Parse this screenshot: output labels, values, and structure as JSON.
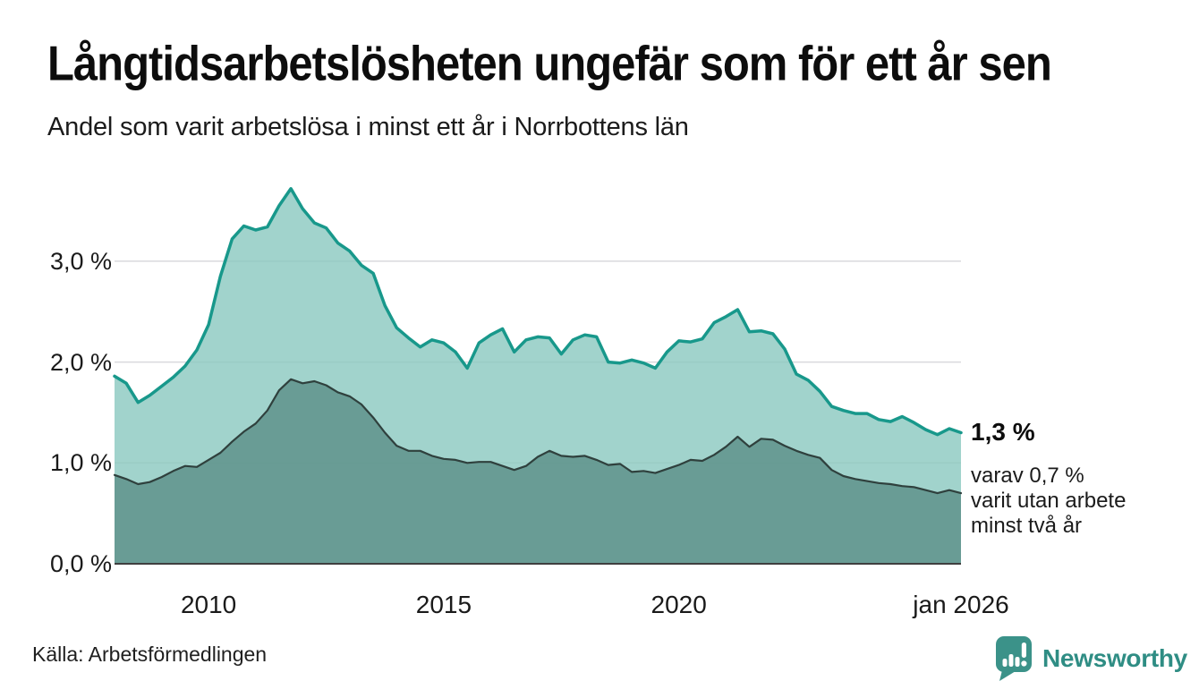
{
  "header": {
    "title": "Långtidsarbetslösheten ungefär som för ett år sen",
    "subtitle": "Andel som varit arbetslösa i minst ett år i Norrbottens län"
  },
  "chart_data": {
    "type": "area",
    "title": "Långtidsarbetslösheten ungefär som för ett år sen",
    "subtitle": "Andel som varit arbetslösa i minst ett år i Norrbottens län",
    "x": {
      "start": 2008,
      "step": 0.25,
      "end": 2026,
      "unit": "year"
    },
    "ylim": [
      0,
      3.9
    ],
    "grid": true,
    "grid_color": "#d9d9dd",
    "axis_color": "#3f3f3f",
    "yticks": {
      "values": [
        0,
        1,
        2,
        3
      ],
      "labels": [
        "0,0 %",
        "1,0 %",
        "2,0 %",
        "3,0 %"
      ]
    },
    "xticks": {
      "values": [
        2010,
        2015,
        2020,
        2026
      ],
      "labels": [
        "2010",
        "2015",
        "2020",
        "jan 2026"
      ]
    },
    "series": [
      {
        "name": "Andel arbetslösa minst ett år",
        "line_color": "#18988b",
        "fill_color": "rgba(137,200,191,0.8)",
        "line_width": 3.5,
        "values": [
          1.86,
          1.79,
          1.6,
          1.67,
          1.76,
          1.85,
          1.96,
          2.12,
          2.37,
          2.85,
          3.22,
          3.35,
          3.31,
          3.34,
          3.55,
          3.72,
          3.52,
          3.38,
          3.33,
          3.18,
          3.1,
          2.96,
          2.88,
          2.56,
          2.34,
          2.24,
          2.15,
          2.22,
          2.19,
          2.1,
          1.94,
          2.19,
          2.27,
          2.33,
          2.1,
          2.22,
          2.25,
          2.24,
          2.08,
          2.22,
          2.27,
          2.25,
          2.0,
          1.99,
          2.02,
          1.99,
          1.94,
          2.1,
          2.21,
          2.2,
          2.23,
          2.39,
          2.45,
          2.52,
          2.3,
          2.31,
          2.28,
          2.13,
          1.88,
          1.82,
          1.71,
          1.56,
          1.52,
          1.49,
          1.49,
          1.43,
          1.41,
          1.46,
          1.4,
          1.33,
          1.28,
          1.34,
          1.3
        ]
      },
      {
        "name": "Andel arbetslösa minst två år",
        "line_color": "#2f403d",
        "fill_color": "rgba(95,146,139,0.85)",
        "line_width": 2.2,
        "values": [
          0.88,
          0.84,
          0.79,
          0.81,
          0.86,
          0.92,
          0.97,
          0.96,
          1.03,
          1.1,
          1.21,
          1.31,
          1.39,
          1.52,
          1.72,
          1.83,
          1.79,
          1.81,
          1.77,
          1.7,
          1.66,
          1.58,
          1.45,
          1.3,
          1.17,
          1.12,
          1.12,
          1.07,
          1.04,
          1.03,
          1.0,
          1.01,
          1.01,
          0.97,
          0.93,
          0.97,
          1.06,
          1.12,
          1.07,
          1.06,
          1.07,
          1.03,
          0.98,
          0.99,
          0.91,
          0.92,
          0.9,
          0.94,
          0.98,
          1.03,
          1.02,
          1.08,
          1.16,
          1.26,
          1.16,
          1.24,
          1.23,
          1.17,
          1.12,
          1.08,
          1.05,
          0.93,
          0.87,
          0.84,
          0.82,
          0.8,
          0.79,
          0.77,
          0.76,
          0.73,
          0.7,
          0.73,
          0.7
        ]
      }
    ],
    "annotation": {
      "value_label": "1,3 %",
      "note_lines": [
        "varav 0,7 %",
        "varit utan arbete",
        "minst två år"
      ]
    }
  },
  "footer": {
    "source": "Källa: Arbetsförmedlingen",
    "logo_text": "Newsworthy",
    "logo_color": "#2f8d84",
    "logo_icon_color": "#3b9289"
  }
}
